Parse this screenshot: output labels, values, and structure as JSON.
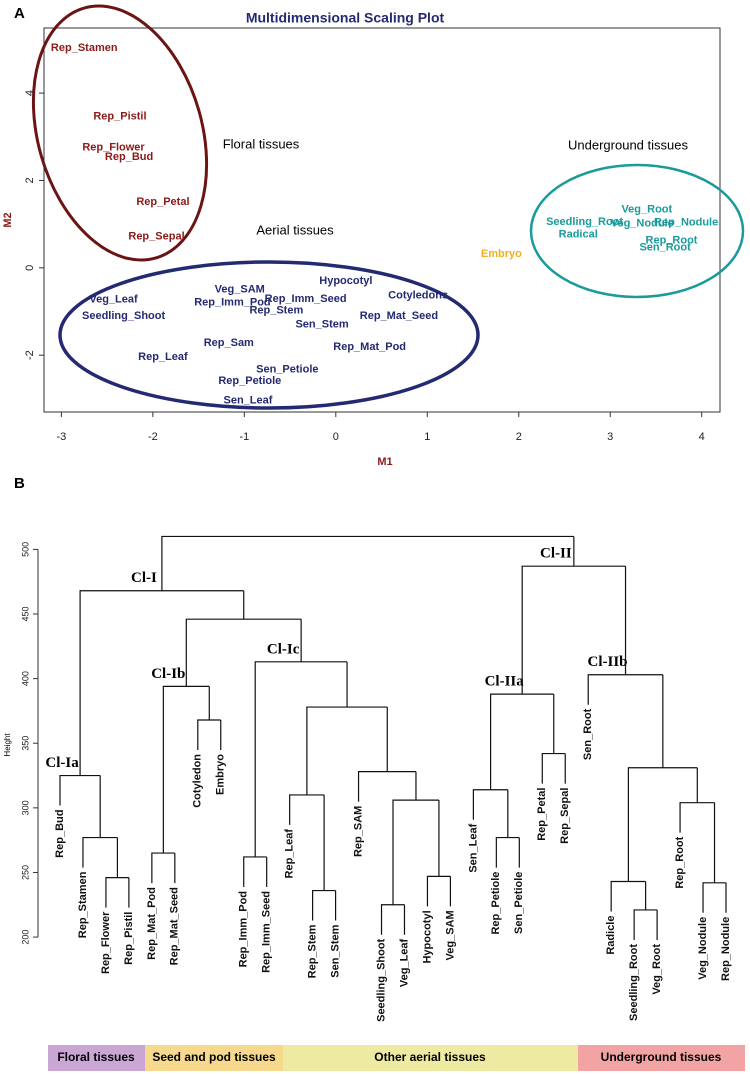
{
  "chart_data": [
    {
      "type": "scatter",
      "panel": "A",
      "title": "Multidimensional Scaling Plot",
      "xlabel": "M1",
      "ylabel": "M2",
      "xlim": [
        -3.19,
        4.2
      ],
      "ylim": [
        -3.3,
        5.49
      ],
      "xticks": [
        -3,
        -2,
        -1,
        0,
        1,
        2,
        3,
        4
      ],
      "yticks": [
        -2,
        0,
        2,
        4
      ],
      "series": [
        {
          "name": "Floral tissues",
          "color": "#8b1a1a",
          "labels": [
            "Rep_Stamen",
            "Rep_Pistil",
            "Rep_Flower",
            "Rep_Bud",
            "Rep_Petal",
            "Rep_Sepal"
          ],
          "x": [
            -2.75,
            -2.36,
            -2.43,
            -2.26,
            -1.89,
            -1.96
          ],
          "y": [
            5.03,
            3.46,
            2.75,
            2.54,
            1.51,
            0.71
          ]
        },
        {
          "name": "Aerial tissues",
          "color": "#232a72",
          "labels": [
            "Veg_Leaf",
            "Seedling_Shoot",
            "Rep_Leaf",
            "Veg_SAM",
            "Rep_Imm_Pod",
            "Rep_Imm_Seed",
            "Rep_Stem",
            "Sen_Stem",
            "Hypocotyl",
            "Cotyledons",
            "Rep_Mat_Seed",
            "Rep_Mat_Pod",
            "Rep_Sam",
            "Sen_Petiole",
            "Rep_Petiole",
            "Sen_Leaf"
          ],
          "x": [
            -2.43,
            -2.32,
            -1.89,
            -1.05,
            -1.13,
            -0.33,
            -0.65,
            -0.15,
            0.11,
            0.9,
            0.69,
            0.37,
            -1.17,
            -0.53,
            -0.94,
            -0.96
          ],
          "y": [
            -0.73,
            -1.1,
            -2.04,
            -0.5,
            -0.8,
            -0.71,
            -0.98,
            -1.3,
            -0.3,
            -0.64,
            -1.1,
            -1.81,
            -1.72,
            -2.33,
            -2.59,
            -3.04
          ]
        },
        {
          "name": "Underground tissues",
          "color": "#1a9a9a",
          "labels": [
            "Seedling_Root",
            "Radical",
            "Veg_Root",
            "Veg_Nodule",
            "Rep_Nodule",
            "Rep_Root",
            "Sen_Root"
          ],
          "x": [
            2.72,
            2.65,
            3.4,
            3.35,
            3.83,
            3.67,
            3.6
          ],
          "y": [
            1.05,
            0.76,
            1.33,
            1.01,
            1.03,
            0.62,
            0.46
          ]
        },
        {
          "color": "#f0b020",
          "labels": [
            "Embryo"
          ],
          "x": [
            1.81
          ],
          "y": [
            0.32
          ]
        }
      ]
    },
    {
      "type": "dendrogram",
      "panel": "B",
      "ylabel": "Height",
      "ylim": [
        190,
        515
      ],
      "yticks": [
        200,
        250,
        300,
        350,
        400,
        450,
        500
      ],
      "tree": {
        "height": 510,
        "children": [
          {
            "label": "Cl-I",
            "height": 468,
            "children": [
              {
                "label": "Cl-Ia",
                "height": 325,
                "children": [
                  "Rep_Bud",
                  {
                    "height": 277,
                    "children": [
                      "Rep_Stamen",
                      {
                        "height": 246,
                        "children": [
                          "Rep_Flower",
                          "Rep_Pistil"
                        ]
                      }
                    ]
                  }
                ]
              },
              {
                "height": 446,
                "children": [
                  {
                    "label": "Cl-Ib",
                    "height": 394,
                    "children": [
                      {
                        "height": 265,
                        "children": [
                          "Rep_Mat_Pod",
                          "Rep_Mat_Seed"
                        ]
                      },
                      {
                        "height": 368,
                        "children": [
                          "Cotyledon",
                          "Embryo"
                        ]
                      }
                    ]
                  },
                  {
                    "label": "Cl-Ic",
                    "height": 413,
                    "children": [
                      {
                        "height": 262,
                        "children": [
                          "Rep_Imm_Pod",
                          "Rep_Imm_Seed"
                        ]
                      },
                      {
                        "height": 378,
                        "children": [
                          {
                            "height": 310,
                            "children": [
                              "Rep_Leaf",
                              {
                                "height": 236,
                                "children": [
                                  "Rep_Stem",
                                  "Sen_Stem"
                                ]
                              }
                            ]
                          },
                          {
                            "height": 328,
                            "children": [
                              "Rep_SAM",
                              {
                                "height": 306,
                                "children": [
                                  {
                                    "height": 225,
                                    "children": [
                                      "Seedling_Shoot",
                                      "Veg_Leaf"
                                    ]
                                  },
                                  {
                                    "height": 247,
                                    "children": [
                                      "Hypocotyl",
                                      "Veg_SAM"
                                    ]
                                  }
                                ]
                              }
                            ]
                          }
                        ]
                      }
                    ]
                  }
                ]
              }
            ]
          },
          {
            "label": "Cl-II",
            "height": 487,
            "children": [
              {
                "label": "Cl-IIa",
                "height": 388,
                "children": [
                  {
                    "height": 314,
                    "children": [
                      "Sen_Leaf",
                      {
                        "height": 277,
                        "children": [
                          "Rep_Petiole",
                          "Sen_Petiole"
                        ]
                      }
                    ]
                  },
                  {
                    "height": 342,
                    "children": [
                      "Rep_Petal",
                      "Rep_Sepal"
                    ]
                  }
                ]
              },
              {
                "label": "Cl-IIb",
                "height": 403,
                "children": [
                  "Sen_Root",
                  {
                    "height": 331,
                    "children": [
                      {
                        "height": 243,
                        "children": [
                          "Radicle",
                          {
                            "height": 221,
                            "children": [
                              "Seedling_Root",
                              "Veg_Root"
                            ]
                          }
                        ]
                      },
                      {
                        "height": 304,
                        "children": [
                          "Rep_Root",
                          {
                            "height": 242,
                            "children": [
                              "Veg_Nodule",
                              "Rep_Nodule"
                            ]
                          }
                        ]
                      }
                    ]
                  }
                ]
              }
            ]
          }
        ]
      },
      "groups": [
        {
          "name": "Floral tissues",
          "color": "#c9a6d4"
        },
        {
          "name": "Seed and pod tissues",
          "color": "#f6d98c"
        },
        {
          "name": "Other aerial tissues",
          "color": "#eeeaa2"
        },
        {
          "name": "Underground tissues",
          "color": "#f2a3a3"
        }
      ]
    }
  ]
}
